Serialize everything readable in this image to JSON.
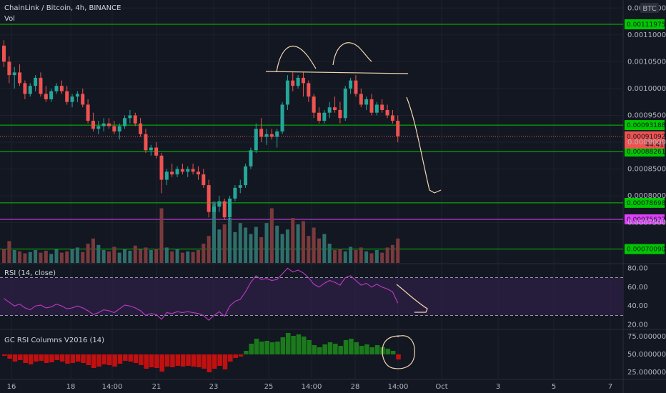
{
  "header": {
    "title": "ChainLink / Bitcoin, 4h, BINANCE",
    "vol_label": "Vol",
    "currency": "BTC"
  },
  "colors": {
    "background": "#131722",
    "up": "#26a69a",
    "down": "#ef5350",
    "vol_up": "#2f6f6b",
    "vol_down": "#7a3a3c",
    "level_line": "#00c800",
    "pink_line": "#e040fb",
    "rsi": "#c038c8",
    "col_up": "#1b7a1b",
    "col_down": "#c01010",
    "drawing": "#f2d8b0"
  },
  "chart_data": [
    {
      "type": "candlestick",
      "title": "ChainLink / Bitcoin, 4h, BINANCE",
      "ylim": [
        0.000675,
        0.001165
      ],
      "y_ticks": [
        "0.00115000",
        "0.00110000",
        "0.00105000",
        "0.00100000",
        "0.00095000",
        "0.00090000",
        "0.00085000",
        "0.00080000",
        "0.00075000"
      ],
      "x_ticks": [
        "16",
        "18",
        "14:00",
        "21",
        "23",
        "25",
        "14:00",
        "28",
        "14:00",
        "Oct",
        "3",
        "5",
        "7"
      ],
      "levels": [
        {
          "label": "0.00111975",
          "value": 0.00111975,
          "color": "#00c800"
        },
        {
          "label": "0.00093188",
          "value": 0.00093188,
          "color": "#00c800"
        },
        {
          "label": "0.00088261",
          "value": 0.00088261,
          "color": "#00c800"
        },
        {
          "label": "0.00078698",
          "value": 0.00078698,
          "color": "#00c800"
        },
        {
          "label": "0.00075627",
          "value": 0.00075627,
          "color": "#e040fb"
        },
        {
          "label": "0.00070090",
          "value": 0.0007009,
          "color": "#00c800"
        }
      ],
      "last_price": {
        "label": "0.00091092",
        "value": 0.00091092,
        "countdown": "44:41"
      },
      "ohlc": [
        [
          0.00108,
          0.00109,
          0.00104,
          0.00105
        ],
        [
          0.00105,
          0.00106,
          0.00101,
          0.001025
        ],
        [
          0.001025,
          0.00104,
          0.001,
          0.00103
        ],
        [
          0.00103,
          0.001045,
          0.001005,
          0.00101
        ],
        [
          0.00101,
          0.001015,
          0.00098,
          0.00099
        ],
        [
          0.00099,
          0.00101,
          0.000985,
          0.001005
        ],
        [
          0.001005,
          0.001025,
          0.000995,
          0.00102
        ],
        [
          0.00102,
          0.00103,
          0.000985,
          0.00099
        ],
        [
          0.00099,
          0.001005,
          0.000975,
          0.00098
        ],
        [
          0.00098,
          0.001,
          0.000975,
          0.000995
        ],
        [
          0.000995,
          0.00101,
          0.00099,
          0.001005
        ],
        [
          0.001005,
          0.001015,
          0.00099,
          0.000995
        ],
        [
          0.000995,
          0.001005,
          0.00097,
          0.000975
        ],
        [
          0.000975,
          0.00099,
          0.000965,
          0.000985
        ],
        [
          0.000985,
          0.000995,
          0.000975,
          0.00099
        ],
        [
          0.00099,
          0.001,
          0.000965,
          0.00097
        ],
        [
          0.00097,
          0.00098,
          0.000935,
          0.00094
        ],
        [
          0.00094,
          0.000955,
          0.00092,
          0.000925
        ],
        [
          0.000925,
          0.00094,
          0.000915,
          0.00093
        ],
        [
          0.00093,
          0.000945,
          0.00092,
          0.000935
        ],
        [
          0.000935,
          0.000945,
          0.000925,
          0.00093
        ],
        [
          0.00093,
          0.00094,
          0.000915,
          0.00092
        ],
        [
          0.00092,
          0.000935,
          0.000905,
          0.00093
        ],
        [
          0.00093,
          0.00095,
          0.000925,
          0.000945
        ],
        [
          0.000945,
          0.00096,
          0.000935,
          0.00095
        ],
        [
          0.00095,
          0.000955,
          0.00093,
          0.000935
        ],
        [
          0.000935,
          0.000945,
          0.00091,
          0.000915
        ],
        [
          0.000915,
          0.000925,
          0.00088,
          0.000885
        ],
        [
          0.000885,
          0.000895,
          0.000875,
          0.00089
        ],
        [
          0.00089,
          0.0009,
          0.00087,
          0.000875
        ],
        [
          0.000875,
          0.00088,
          0.000805,
          0.00083
        ],
        [
          0.00083,
          0.00085,
          0.00082,
          0.000845
        ],
        [
          0.000845,
          0.00086,
          0.000835,
          0.00084
        ],
        [
          0.00084,
          0.000855,
          0.000835,
          0.00085
        ],
        [
          0.00085,
          0.00086,
          0.00084,
          0.000845
        ],
        [
          0.000845,
          0.000855,
          0.000835,
          0.00085
        ],
        [
          0.00085,
          0.00086,
          0.00084,
          0.000845
        ],
        [
          0.000845,
          0.000855,
          0.00083,
          0.00084
        ],
        [
          0.00084,
          0.00085,
          0.000815,
          0.00082
        ],
        [
          0.00082,
          0.00083,
          0.00076,
          0.00077
        ],
        [
          0.00077,
          0.00079,
          0.000755,
          0.00078
        ],
        [
          0.00078,
          0.0008,
          0.00077,
          0.00079
        ],
        [
          0.00079,
          0.000795,
          0.000755,
          0.00076
        ],
        [
          0.00076,
          0.0008,
          0.000755,
          0.000795
        ],
        [
          0.000795,
          0.00082,
          0.00079,
          0.000815
        ],
        [
          0.000815,
          0.00083,
          0.000805,
          0.00082
        ],
        [
          0.00082,
          0.00086,
          0.000815,
          0.000855
        ],
        [
          0.000855,
          0.00089,
          0.00085,
          0.000885
        ],
        [
          0.000885,
          0.000935,
          0.00088,
          0.000925
        ],
        [
          0.000925,
          0.000945,
          0.0009,
          0.00091
        ],
        [
          0.00091,
          0.000925,
          0.000895,
          0.000915
        ],
        [
          0.000915,
          0.000925,
          0.000905,
          0.00091
        ],
        [
          0.00091,
          0.000925,
          0.00089,
          0.00092
        ],
        [
          0.00092,
          0.000975,
          0.000915,
          0.00097
        ],
        [
          0.00097,
          0.001025,
          0.00096,
          0.001015
        ],
        [
          0.001015,
          0.00103,
          0.000995,
          0.001005
        ],
        [
          0.001005,
          0.001025,
          0.001,
          0.00102
        ],
        [
          0.00102,
          0.00103,
          0.000985,
          0.00101
        ],
        [
          0.00101,
          0.001015,
          0.000975,
          0.000985
        ],
        [
          0.000985,
          0.00099,
          0.000945,
          0.000955
        ],
        [
          0.000955,
          0.000965,
          0.000935,
          0.00094
        ],
        [
          0.00094,
          0.00096,
          0.000935,
          0.000955
        ],
        [
          0.000955,
          0.000975,
          0.000945,
          0.000965
        ],
        [
          0.000965,
          0.000985,
          0.000955,
          0.00096
        ],
        [
          0.00096,
          0.000975,
          0.000935,
          0.000945
        ],
        [
          0.000945,
          0.001005,
          0.00094,
          0.001
        ],
        [
          0.001,
          0.00102,
          0.00099,
          0.001015
        ],
        [
          0.001015,
          0.001025,
          0.000985,
          0.00099
        ],
        [
          0.00099,
          0.001,
          0.000965,
          0.00097
        ],
        [
          0.00097,
          0.000985,
          0.00096,
          0.00098
        ],
        [
          0.00098,
          0.00099,
          0.00095,
          0.000955
        ],
        [
          0.000955,
          0.000975,
          0.00095,
          0.00097
        ],
        [
          0.00097,
          0.00098,
          0.000955,
          0.00096
        ],
        [
          0.00096,
          0.00097,
          0.000945,
          0.00095
        ],
        [
          0.00095,
          0.00096,
          0.000935,
          0.00094
        ],
        [
          0.00094,
          0.00095,
          0.0009,
          0.000911
        ]
      ],
      "volume": [
        22,
        34,
        20,
        18,
        15,
        17,
        20,
        16,
        19,
        14,
        21,
        16,
        18,
        22,
        24,
        17,
        30,
        38,
        28,
        20,
        18,
        25,
        16,
        22,
        19,
        27,
        21,
        24,
        20,
        22,
        85,
        24,
        18,
        22,
        16,
        18,
        17,
        20,
        30,
        42,
        95,
        52,
        60,
        70,
        48,
        62,
        55,
        45,
        56,
        40,
        62,
        85,
        58,
        45,
        52,
        70,
        60,
        65,
        42,
        55,
        38,
        45,
        30,
        20,
        22,
        18,
        25,
        20,
        24,
        18,
        15,
        20,
        16,
        24,
        28,
        38
      ]
    },
    {
      "type": "line",
      "title": "RSI (14, close)",
      "ylim": [
        16,
        84
      ],
      "y_ticks": [
        "80.00",
        "60.00",
        "40.00",
        "20.00"
      ],
      "bands": [
        70,
        30
      ],
      "values": [
        48,
        44,
        40,
        42,
        38,
        36,
        40,
        41,
        38,
        39,
        42,
        40,
        37,
        38,
        40,
        38,
        35,
        31,
        33,
        36,
        35,
        33,
        37,
        41,
        40,
        38,
        35,
        30,
        32,
        31,
        26,
        33,
        32,
        34,
        33,
        34,
        33,
        32,
        30,
        25,
        30,
        34,
        29,
        40,
        45,
        47,
        55,
        65,
        72,
        68,
        69,
        67,
        68,
        74,
        80,
        76,
        78,
        75,
        70,
        63,
        60,
        64,
        67,
        65,
        62,
        70,
        72,
        67,
        62,
        64,
        60,
        63,
        60,
        58,
        55,
        43
      ]
    },
    {
      "type": "bar",
      "title": "GC RSI Columns V2016 (14)",
      "ylim": [
        16,
        84
      ],
      "baseline": 50,
      "y_ticks": [
        "75.00000000",
        "50.00000000",
        "25.00000000"
      ]
    }
  ],
  "annotation_note": "Hand-drawn head and shoulders outline, neckline, downward projection arrows and circled RSI column."
}
